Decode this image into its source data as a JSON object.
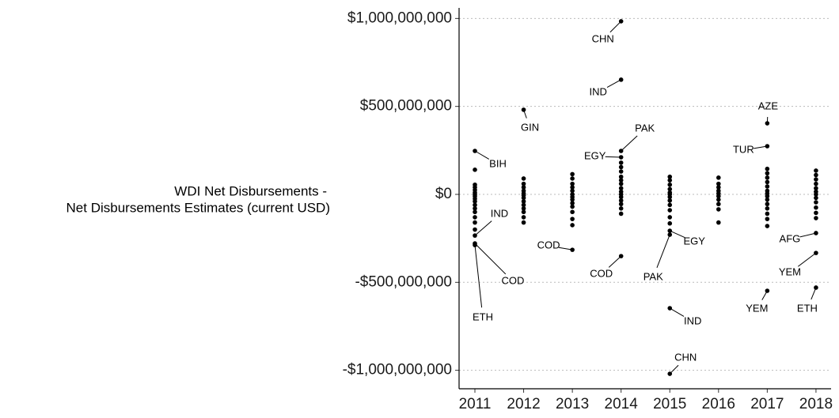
{
  "chart_data": {
    "type": "scatter",
    "ylabel": [
      "WDI Net Disbursements -",
      "Net Disbursements Estimates (current USD)"
    ],
    "x": [
      2011,
      2011,
      2011,
      2011,
      2012,
      2013,
      2014,
      2014,
      2014,
      2014,
      2014,
      2015,
      2015,
      2015,
      2015,
      2017,
      2017,
      2017,
      2018,
      2018,
      2018,
      2011,
      2011,
      2011,
      2011,
      2011,
      2011,
      2011,
      2011,
      2011,
      2011,
      2011,
      2011,
      2011,
      2011,
      2011,
      2012,
      2012,
      2012,
      2012,
      2012,
      2012,
      2012,
      2012,
      2012,
      2012,
      2012,
      2012,
      2012,
      2013,
      2013,
      2013,
      2013,
      2013,
      2013,
      2013,
      2013,
      2013,
      2013,
      2013,
      2013,
      2013,
      2014,
      2014,
      2014,
      2014,
      2014,
      2014,
      2014,
      2014,
      2014,
      2014,
      2014,
      2014,
      2014,
      2014,
      2015,
      2015,
      2015,
      2015,
      2015,
      2015,
      2015,
      2015,
      2015,
      2015,
      2015,
      2015,
      2016,
      2016,
      2016,
      2016,
      2016,
      2016,
      2016,
      2016,
      2016,
      2016,
      2017,
      2017,
      2017,
      2017,
      2017,
      2017,
      2017,
      2017,
      2017,
      2017,
      2017,
      2017,
      2017,
      2017,
      2018,
      2018,
      2018,
      2018,
      2018,
      2018,
      2018,
      2018,
      2018,
      2018,
      2018,
      2018
    ],
    "values": [
      247000000,
      -234000000,
      -279000000,
      -288000000,
      481000000,
      -315000000,
      984000000,
      652000000,
      247000000,
      211000000,
      -351000000,
      -207000000,
      -229000000,
      -647000000,
      -1020000000,
      404000000,
      274000000,
      -548000000,
      -220000000,
      -333000000,
      -530000000,
      140000000,
      55000000,
      40000000,
      25000000,
      10000000,
      0,
      -10000000,
      -25000000,
      -40000000,
      -60000000,
      -80000000,
      -100000000,
      -130000000,
      -160000000,
      -200000000,
      90000000,
      60000000,
      40000000,
      20000000,
      5000000,
      -5000000,
      -20000000,
      -40000000,
      -60000000,
      -80000000,
      -100000000,
      -130000000,
      -160000000,
      115000000,
      90000000,
      60000000,
      40000000,
      20000000,
      0,
      -15000000,
      -30000000,
      -50000000,
      -70000000,
      -100000000,
      -140000000,
      -175000000,
      180000000,
      155000000,
      130000000,
      100000000,
      80000000,
      60000000,
      35000000,
      15000000,
      0,
      -15000000,
      -35000000,
      -55000000,
      -80000000,
      -110000000,
      100000000,
      80000000,
      55000000,
      30000000,
      10000000,
      0,
      -15000000,
      -35000000,
      -60000000,
      -90000000,
      -130000000,
      -165000000,
      95000000,
      60000000,
      40000000,
      20000000,
      5000000,
      -10000000,
      -30000000,
      -55000000,
      -85000000,
      -160000000,
      145000000,
      120000000,
      95000000,
      70000000,
      45000000,
      20000000,
      5000000,
      -10000000,
      -30000000,
      -55000000,
      -80000000,
      -110000000,
      -140000000,
      -180000000,
      135000000,
      110000000,
      85000000,
      60000000,
      35000000,
      15000000,
      0,
      -20000000,
      -45000000,
      -75000000,
      -105000000,
      -135000000
    ],
    "point_labels": [
      "BIH",
      "IND",
      "COD",
      "ETH",
      "GIN",
      "COD",
      "CHN",
      "IND",
      "PAK",
      "EGY",
      "COD",
      "EGY",
      "PAK",
      "IND",
      "CHN",
      "AZE",
      "TUR",
      "YEM",
      "AFG",
      "YEM",
      "ETH",
      null,
      null,
      null,
      null,
      null,
      null,
      null,
      null,
      null,
      null,
      null,
      null,
      null,
      null,
      null,
      null,
      null,
      null,
      null,
      null,
      null,
      null,
      null,
      null,
      null,
      null,
      null,
      null,
      null,
      null,
      null,
      null,
      null,
      null,
      null,
      null,
      null,
      null,
      null,
      null,
      null,
      null,
      null,
      null,
      null,
      null,
      null,
      null,
      null,
      null,
      null,
      null,
      null,
      null,
      null,
      null,
      null,
      null,
      null,
      null,
      null,
      null,
      null,
      null,
      null,
      null,
      null,
      null,
      null,
      null,
      null,
      null,
      null,
      null,
      null,
      null,
      null,
      null,
      null,
      null,
      null,
      null,
      null,
      null,
      null,
      null,
      null,
      null,
      null,
      null,
      null,
      null,
      null,
      null,
      null,
      null,
      null,
      null,
      null,
      null,
      null,
      null,
      null
    ],
    "color": "#000000",
    "xlim": [
      2010.675,
      2018.31
    ],
    "xticks": [
      2011,
      2012,
      2013,
      2014,
      2015,
      2016,
      2017,
      2018
    ],
    "ylim": [
      -1105000000,
      1060000000
    ],
    "yticks": [
      {
        "value": -1000000000,
        "label": "-$1,000,000,000"
      },
      {
        "value": -500000000,
        "label": "-$500,000,000"
      },
      {
        "value": 0,
        "label": "$0"
      },
      {
        "value": 500000000,
        "label": "$500,000,000"
      },
      {
        "value": 1000000000,
        "label": "$1,000,000,000"
      }
    ],
    "grid": true
  }
}
